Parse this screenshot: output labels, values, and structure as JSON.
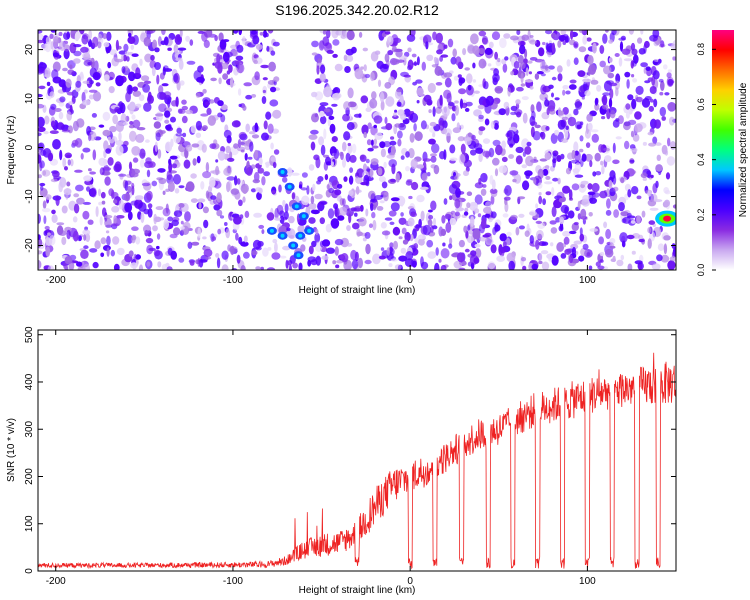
{
  "title": "S196.2025.342.20.02.R12",
  "chart_data": [
    {
      "type": "heatmap",
      "xlabel": "Height of straight line (km)",
      "ylabel": "Frequency (Hz)",
      "xlim": [
        -210,
        150
      ],
      "ylim": [
        -25,
        24
      ],
      "x_ticks": [
        -200,
        -100,
        0,
        100
      ],
      "y_ticks": [
        20,
        10,
        0,
        -10,
        -20
      ],
      "colorbar": {
        "label": "Normalized spectral amplitude",
        "range": [
          0.0,
          0.87
        ],
        "ticks": [
          "0.0",
          "0.2",
          "0.4",
          "0.6",
          "0.8"
        ],
        "colormap": [
          "#ffffff",
          "#c9a8f0",
          "#8a2be2",
          "#4a00ff",
          "#0000ff",
          "#00c8ff",
          "#00ff80",
          "#40ff00",
          "#c0ff00",
          "#ffd000",
          "#ff6a00",
          "#ff0000",
          "#ff0080"
        ]
      },
      "notes": {
        "blank_band_x": [
          -75,
          -55
        ],
        "streak_points": [
          [
            -72,
            -5
          ],
          [
            -68,
            -8
          ],
          [
            -64,
            -12
          ],
          [
            -60,
            -14
          ],
          [
            -57,
            -17
          ],
          [
            -62,
            -18
          ],
          [
            -72,
            -18
          ],
          [
            -78,
            -17
          ],
          [
            -66,
            -20
          ],
          [
            -63,
            -22
          ]
        ],
        "hotspot": {
          "x": 145,
          "y": -14.5,
          "value": 0.87
        },
        "grid": false
      }
    },
    {
      "type": "line",
      "xlabel": "Height of straight line (km)",
      "ylabel": "SNR (10 * v/v)",
      "xlim": [
        -210,
        150
      ],
      "ylim": [
        0,
        510
      ],
      "x_ticks": [
        -200,
        -100,
        0,
        100
      ],
      "y_ticks": [
        0,
        100,
        200,
        300,
        400,
        500
      ],
      "color": "#ee2222",
      "envelope": {
        "x": [
          -210,
          -150,
          -100,
          -80,
          -70,
          -60,
          -50,
          -40,
          -30,
          -20,
          -10,
          0,
          10,
          20,
          30,
          40,
          50,
          60,
          70,
          80,
          90,
          100,
          110,
          120,
          130,
          140,
          150
        ],
        "mean": [
          12,
          12,
          13,
          14,
          22,
          45,
          55,
          60,
          80,
          135,
          180,
          200,
          215,
          240,
          270,
          290,
          300,
          320,
          340,
          350,
          360,
          370,
          380,
          385,
          390,
          395,
          400
        ],
        "spread": [
          10,
          10,
          12,
          14,
          20,
          40,
          50,
          50,
          60,
          80,
          80,
          70,
          70,
          65,
          70,
          70,
          70,
          70,
          75,
          75,
          80,
          80,
          80,
          80,
          85,
          90,
          95
        ]
      },
      "dropouts_x": [
        -30,
        0,
        14,
        29,
        44,
        58,
        72,
        86,
        100,
        114,
        128,
        140
      ],
      "grid": false
    }
  ]
}
